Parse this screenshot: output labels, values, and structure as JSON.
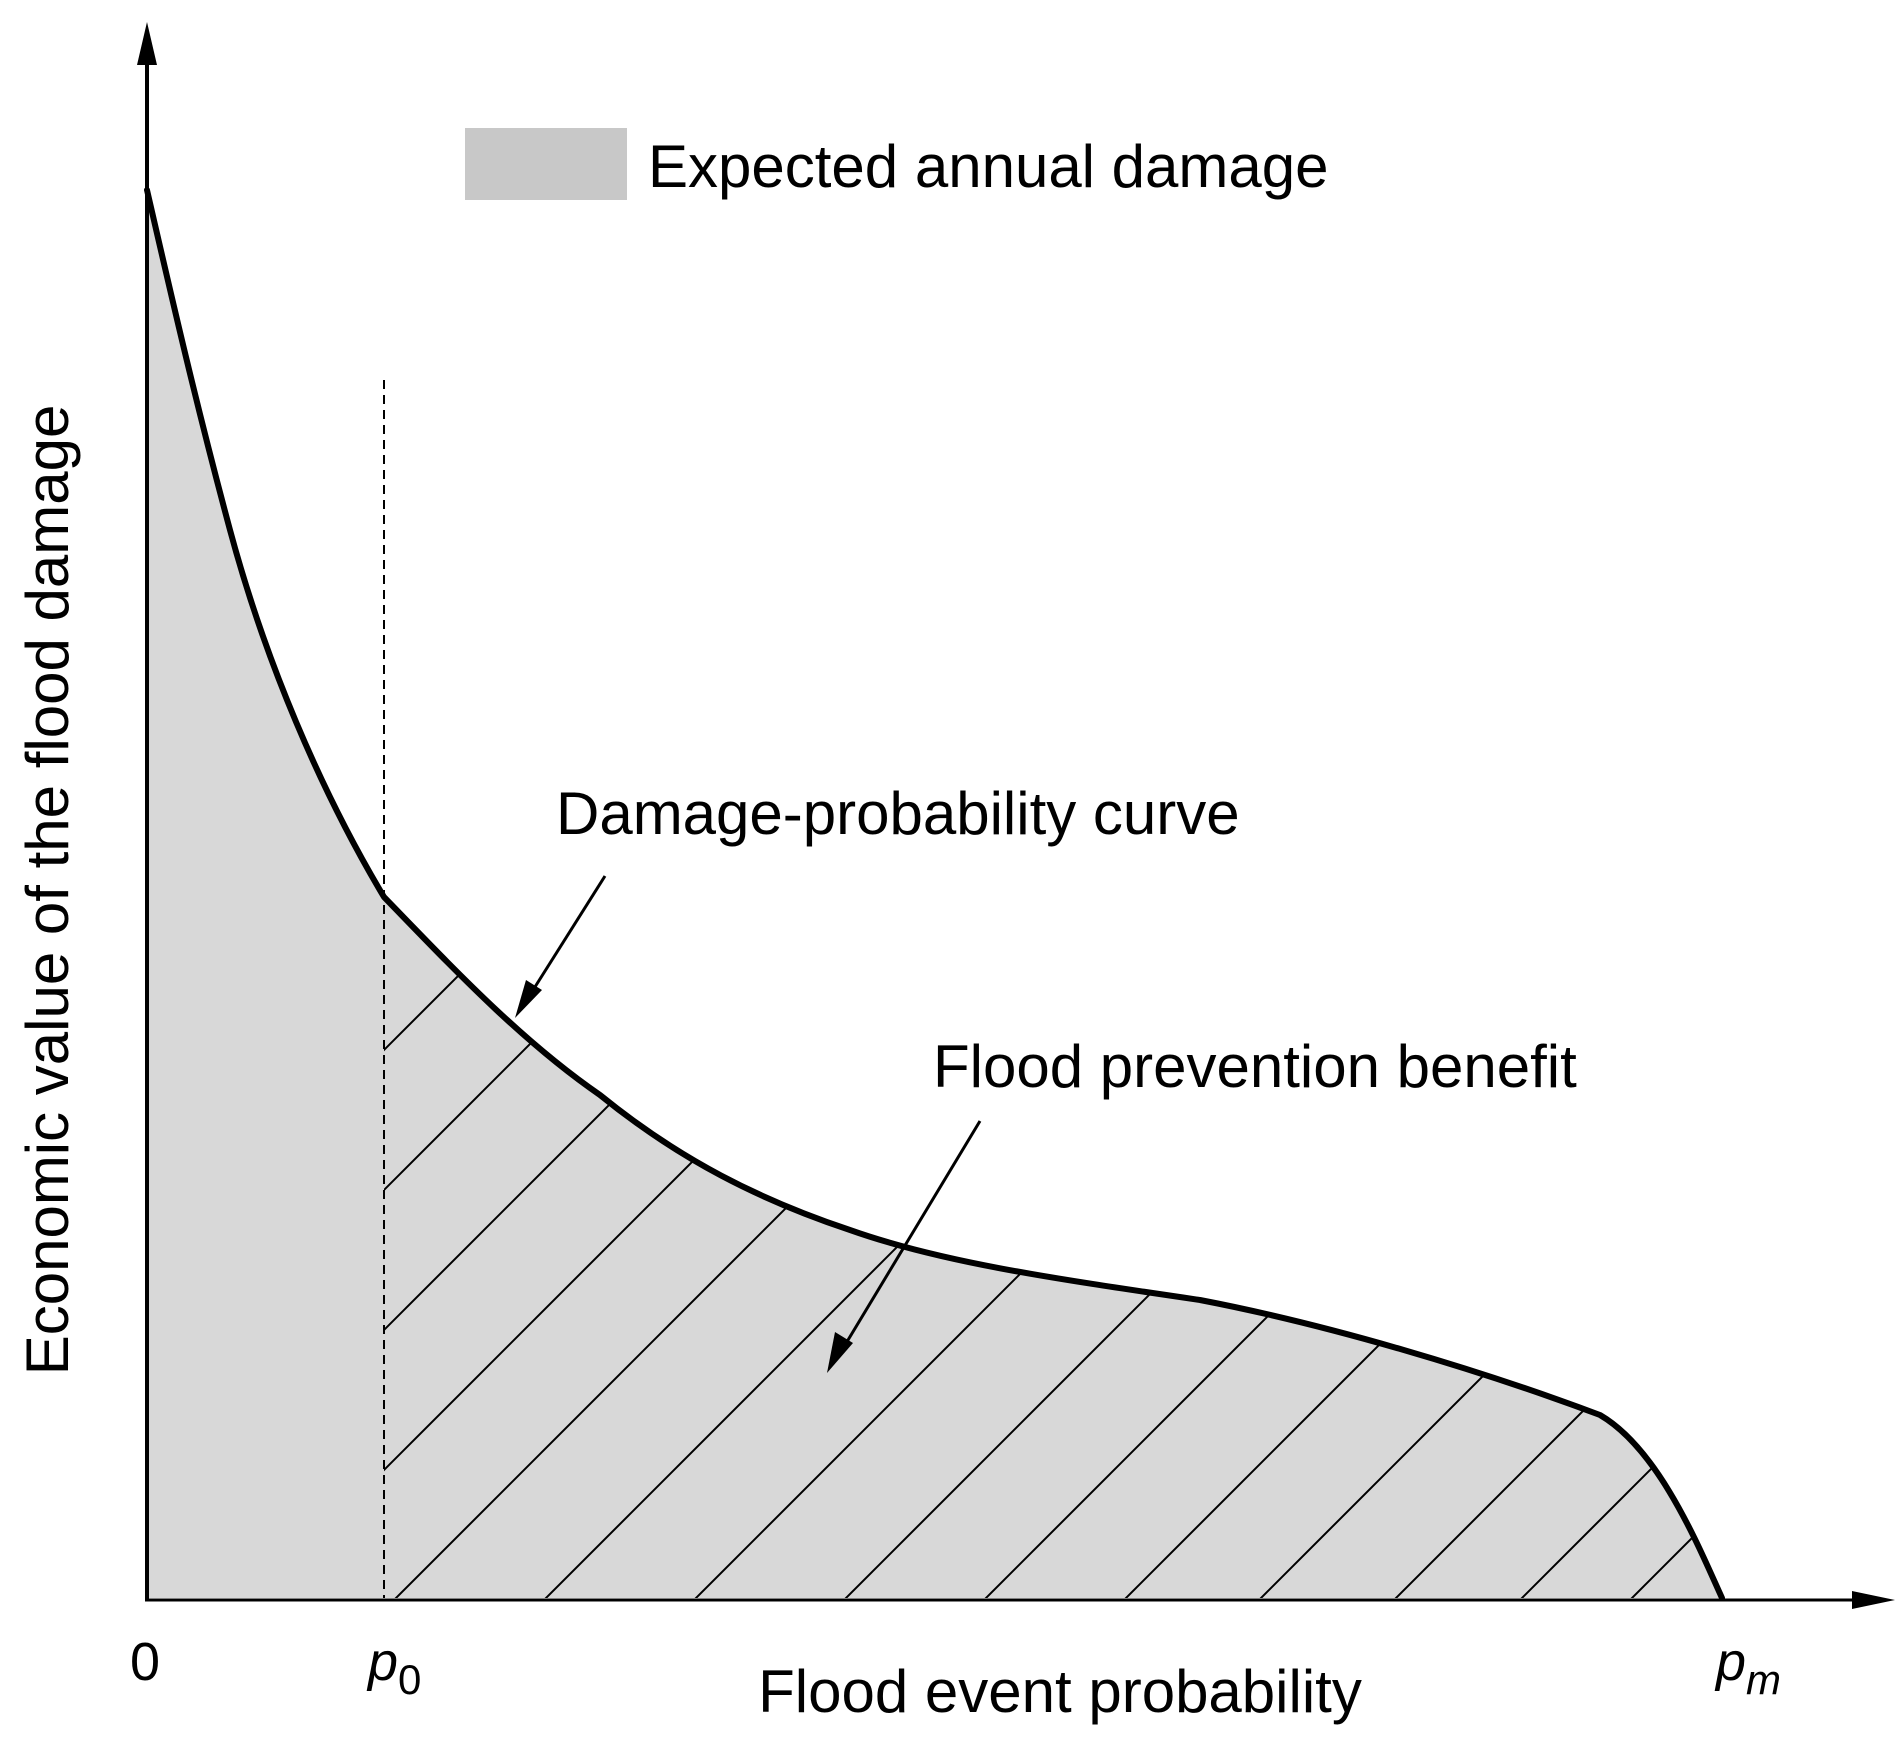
{
  "legend": {
    "label": "Expected annual damage",
    "swatch_color": "#c8c8c8"
  },
  "axes": {
    "y_label": "Economic value of the flood damage",
    "x_label": "Flood event probability",
    "origin_label": "0",
    "p0_base": "p",
    "p0_sub": "0",
    "pm_base": "p",
    "pm_sub": "m"
  },
  "annotations": {
    "curve": "Damage-probability curve",
    "benefit": "Flood prevention benefit"
  },
  "colors": {
    "fill": "#d8d8d8",
    "stroke": "#000000"
  }
}
